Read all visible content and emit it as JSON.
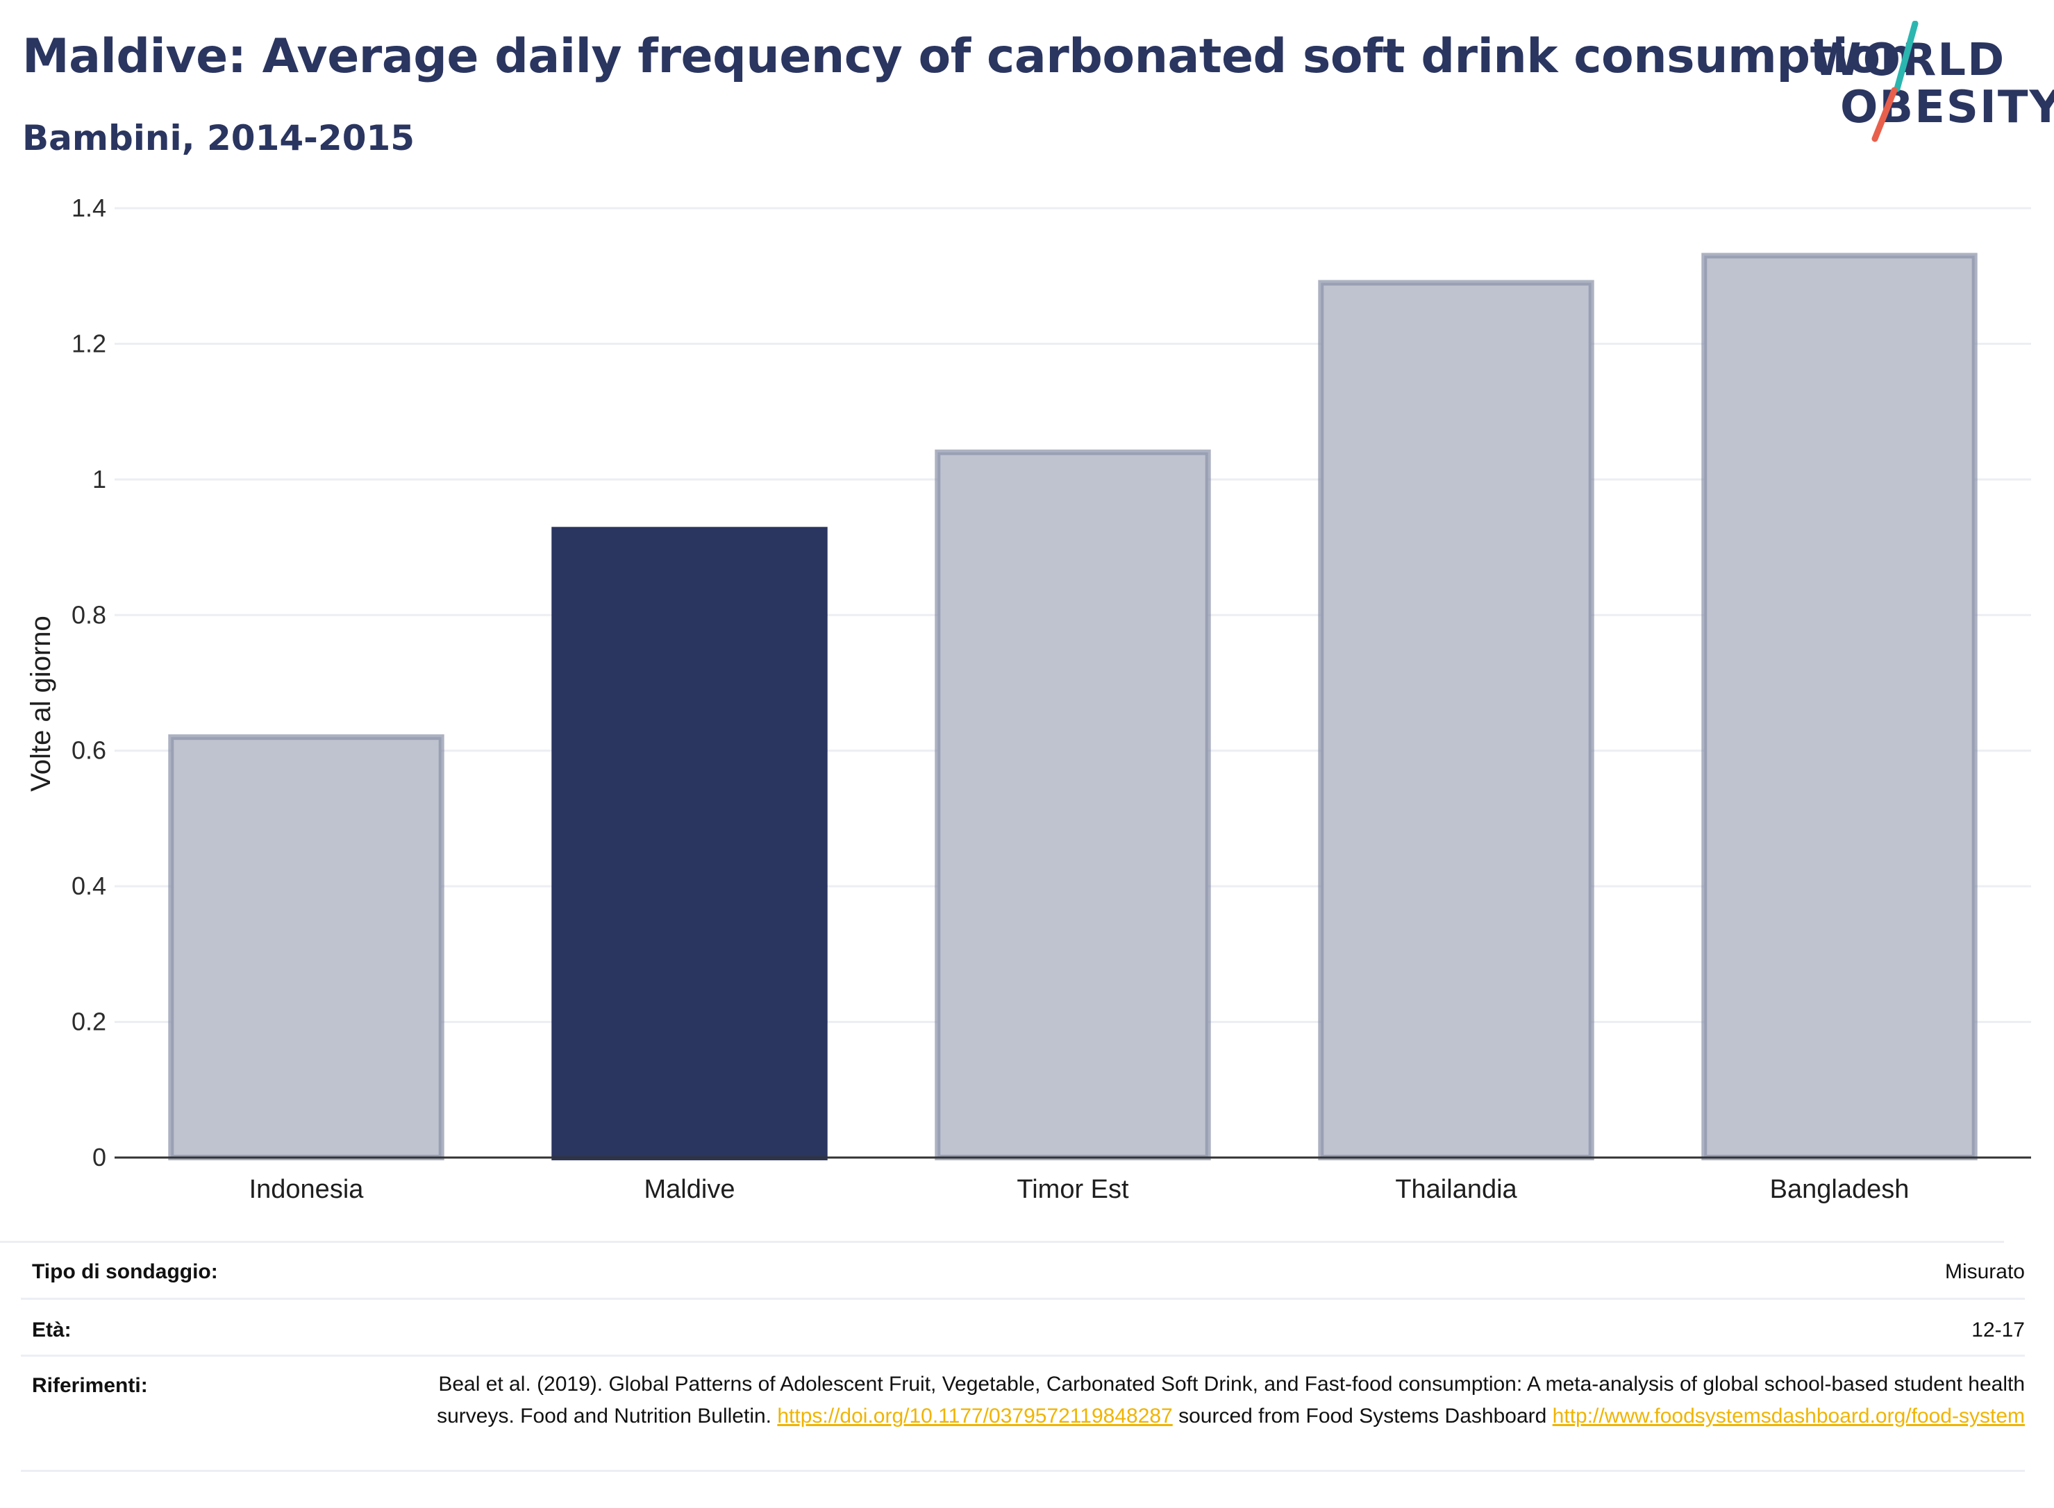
{
  "header": {
    "title": "Maldive: Average daily frequency of carbonated soft drink consumption",
    "subtitle": "Bambini, 2014-2015"
  },
  "logo": {
    "line1": "WORLD",
    "line2": "OBESITY",
    "accent_teal": "#2bb6b0",
    "accent_red": "#e8604c"
  },
  "chart_data": {
    "type": "bar",
    "title": "Maldive: Average daily frequency of carbonated soft drink consumption",
    "subtitle": "Bambini, 2014-2015",
    "xlabel": "",
    "ylabel": "Volte al giorno",
    "categories": [
      "Indonesia",
      "Maldive",
      "Timor Est",
      "Thailandia",
      "Bangladesh"
    ],
    "values": [
      0.62,
      0.93,
      1.04,
      1.29,
      1.33
    ],
    "highlight": "Maldive",
    "ylim": [
      0,
      1.4
    ],
    "yticks": [
      0,
      0.2,
      0.4,
      0.6,
      0.8,
      1,
      1.2,
      1.4
    ],
    "ytick_labels": [
      "0",
      "0.2",
      "0.4",
      "0.6",
      "0.8",
      "1",
      "1.2",
      "1.4"
    ],
    "grid": true,
    "colors": {
      "highlight": "#2a3560",
      "other_fill": "#bfc3cf",
      "other_stroke": "#8a91a8"
    }
  },
  "meta": {
    "survey_type": {
      "label": "Tipo di sondaggio:",
      "value": "Misurato"
    },
    "age": {
      "label": "Età:",
      "value": "12-17"
    },
    "references": {
      "label": "Riferimenti:",
      "text1": "Beal et al. (2019). Global Patterns of Adolescent Fruit, Vegetable, Carbonated Soft Drink, and Fast-food consumption: A meta-analysis of global school-based student health surveys. Food and Nutrition Bulletin.",
      "link1": "https://doi.org/10.1177/0379572119848287",
      "text2": "sourced from Food Systems Dashboard",
      "link2": "http://www.foodsystemsdashboard.org/food-system"
    }
  }
}
